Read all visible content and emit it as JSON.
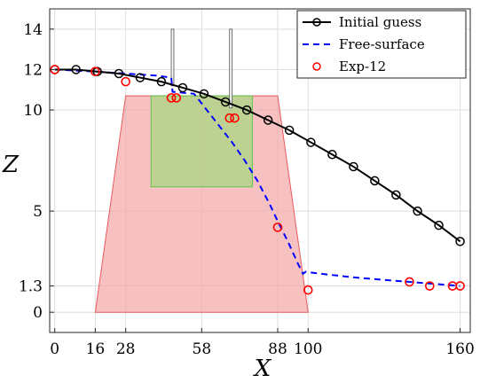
{
  "chart_data": {
    "type": "line",
    "title": "",
    "xlabel": "X",
    "ylabel": "Z",
    "xlim": [
      -2,
      164
    ],
    "ylim": [
      -1,
      15
    ],
    "grid": true,
    "legend_position": "top-right",
    "x_ticks": [
      0,
      16,
      28,
      58,
      88,
      100,
      160
    ],
    "y_ticks": [
      0,
      1.3,
      5,
      10,
      12,
      14
    ],
    "x_tick_labels": [
      "0",
      "16",
      "28",
      "58",
      "88",
      "100",
      "160"
    ],
    "y_tick_labels": [
      "0",
      "1.3",
      "5",
      "10",
      "12",
      "14"
    ],
    "colors": {
      "initial_guess": "#000000",
      "free_surface": "#0000ff",
      "exp": "#ff0000",
      "trapezoid_fill": "#f4a6a6",
      "trapezoid_stroke": "#e8595c",
      "box_fill": "#b3d48a",
      "box_stroke": "#5cc84b",
      "grid": "#dedede"
    },
    "series": [
      {
        "name": "Initial guess",
        "style": "solid-circle-markers",
        "x": [
          0,
          8.4,
          16.8,
          25.3,
          33.7,
          42.1,
          50.5,
          58.9,
          67.4,
          75.8,
          84.2,
          92.6,
          101.1,
          109.5,
          117.9,
          126.3,
          134.7,
          143.2,
          151.6,
          160
        ],
        "y": [
          12.0,
          12.0,
          11.9,
          11.8,
          11.6,
          11.4,
          11.1,
          10.8,
          10.4,
          10.0,
          9.5,
          9.0,
          8.4,
          7.8,
          7.2,
          6.5,
          5.8,
          5.0,
          4.3,
          3.5
        ]
      },
      {
        "name": "Free-surface",
        "style": "dashed",
        "x": [
          0,
          16,
          28,
          40,
          46,
          46.5,
          55,
          60,
          65,
          70,
          75,
          80,
          85,
          88,
          92,
          96,
          98,
          99,
          105,
          120,
          135,
          150,
          160
        ],
        "y": [
          12.0,
          11.9,
          11.8,
          11.7,
          11.6,
          10.9,
          10.8,
          10.0,
          9.2,
          8.4,
          7.5,
          6.5,
          5.3,
          4.5,
          3.5,
          2.4,
          1.9,
          2.0,
          1.9,
          1.7,
          1.55,
          1.4,
          1.3
        ]
      },
      {
        "name": "Exp-12",
        "style": "circle-markers",
        "x": [
          0,
          16,
          28,
          46,
          48,
          69,
          71,
          88,
          100,
          140,
          148,
          157,
          160
        ],
        "y": [
          12.0,
          11.9,
          11.4,
          10.6,
          10.6,
          9.6,
          9.6,
          4.2,
          1.1,
          1.5,
          1.3,
          1.3,
          1.3
        ]
      }
    ],
    "shapes": [
      {
        "name": "trapezoid-region",
        "polygon": [
          [
            16,
            0
          ],
          [
            100,
            0
          ],
          [
            88,
            10.7
          ],
          [
            28,
            10.7
          ]
        ]
      },
      {
        "name": "inner-box",
        "polygon": [
          [
            38,
            6.2
          ],
          [
            78,
            6.2
          ],
          [
            78,
            10.7
          ],
          [
            38,
            10.7
          ]
        ]
      },
      {
        "name": "left-post",
        "polygon": [
          [
            46,
            11.2
          ],
          [
            47,
            11.2
          ],
          [
            47,
            14.0
          ],
          [
            46,
            14.0
          ]
        ]
      },
      {
        "name": "right-post",
        "polygon": [
          [
            69,
            10.1
          ],
          [
            70,
            10.1
          ],
          [
            70,
            14.0
          ],
          [
            69,
            14.0
          ]
        ]
      }
    ]
  }
}
